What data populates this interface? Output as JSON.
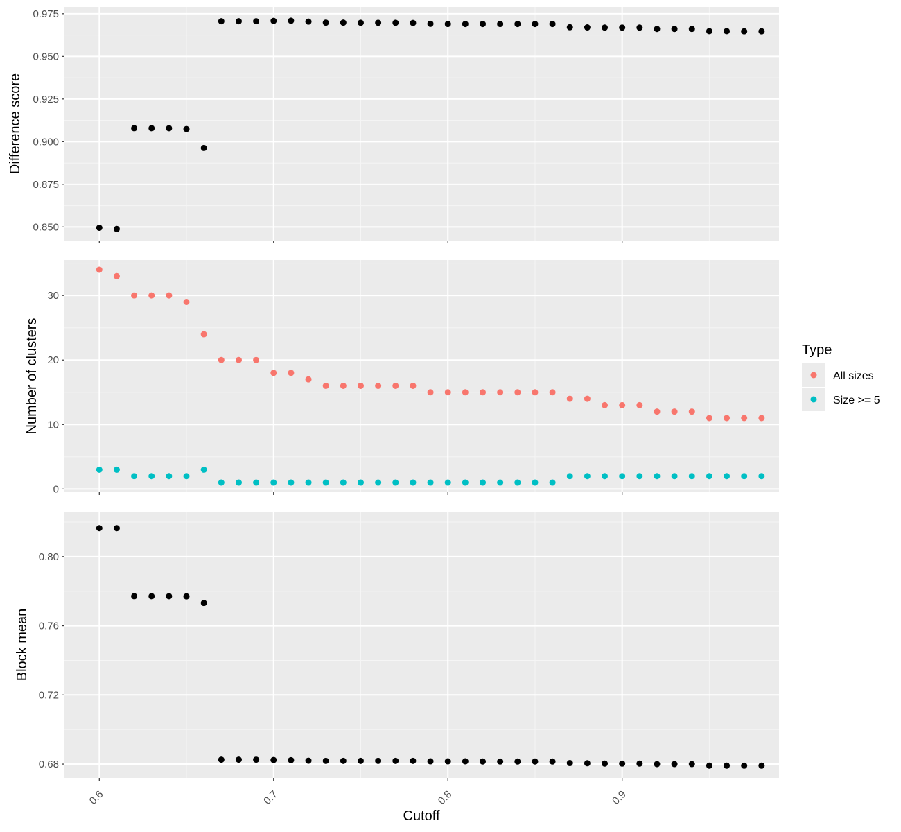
{
  "chart_data": {
    "type": "scatter",
    "xlabel": "Cutoff",
    "x_ticks": [
      "0.6",
      "0.7",
      "0.8",
      "0.9"
    ],
    "x_tick_values": [
      0.6,
      0.7,
      0.8,
      0.9
    ],
    "xlim": [
      0.58,
      0.99
    ],
    "x": [
      0.6,
      0.61,
      0.62,
      0.63,
      0.64,
      0.65,
      0.66,
      0.67,
      0.68,
      0.69,
      0.7,
      0.71,
      0.72,
      0.73,
      0.74,
      0.75,
      0.76,
      0.77,
      0.78,
      0.79,
      0.8,
      0.81,
      0.82,
      0.83,
      0.84,
      0.85,
      0.86,
      0.87,
      0.88,
      0.89,
      0.9,
      0.91,
      0.92,
      0.93,
      0.94,
      0.95,
      0.96,
      0.97,
      0.98
    ],
    "grid": true,
    "panels": [
      {
        "ylabel": "Difference score",
        "ylim": [
          0.842,
          0.979
        ],
        "y_ticks": [
          "0.850",
          "0.875",
          "0.900",
          "0.925",
          "0.950",
          "0.975"
        ],
        "y_tick_values": [
          0.85,
          0.875,
          0.9,
          0.925,
          0.95,
          0.975
        ],
        "series": [
          {
            "color": "#000000",
            "values": [
              0.8495,
              0.8488,
              0.9079,
              0.9079,
              0.9079,
              0.9074,
              0.8963,
              0.9706,
              0.9706,
              0.9706,
              0.9708,
              0.9709,
              0.9704,
              0.9698,
              0.9698,
              0.9697,
              0.9697,
              0.9697,
              0.9696,
              0.9691,
              0.969,
              0.969,
              0.969,
              0.969,
              0.969,
              0.969,
              0.969,
              0.9671,
              0.967,
              0.9669,
              0.9669,
              0.9669,
              0.9661,
              0.9661,
              0.9661,
              0.9648,
              0.9648,
              0.9647,
              0.9647
            ]
          }
        ]
      },
      {
        "ylabel": "Number of clusters",
        "ylim": [
          -0.5,
          35.5
        ],
        "y_ticks": [
          "0",
          "10",
          "20",
          "30"
        ],
        "y_tick_values": [
          0,
          10,
          20,
          30
        ],
        "series": [
          {
            "name": "All sizes",
            "color": "#F8766D",
            "values": [
              34,
              33,
              30,
              30,
              30,
              29,
              24,
              20,
              20,
              20,
              18,
              18,
              17,
              16,
              16,
              16,
              16,
              16,
              16,
              15,
              15,
              15,
              15,
              15,
              15,
              15,
              15,
              14,
              14,
              13,
              13,
              13,
              12,
              12,
              12,
              11,
              11,
              11,
              11
            ]
          },
          {
            "name": "Size >= 5",
            "color": "#00BFC4",
            "values": [
              3,
              3,
              2,
              2,
              2,
              2,
              3,
              1,
              1,
              1,
              1,
              1,
              1,
              1,
              1,
              1,
              1,
              1,
              1,
              1,
              1,
              1,
              1,
              1,
              1,
              1,
              1,
              2,
              2,
              2,
              2,
              2,
              2,
              2,
              2,
              2,
              2,
              2,
              2
            ]
          }
        ]
      },
      {
        "ylabel": "Block mean",
        "ylim": [
          0.672,
          0.826
        ],
        "y_ticks": [
          "0.68",
          "0.72",
          "0.76",
          "0.80"
        ],
        "y_tick_values": [
          0.68,
          0.72,
          0.76,
          0.8
        ],
        "series": [
          {
            "color": "#000000",
            "values": [
              0.8165,
              0.8165,
              0.7771,
              0.7771,
              0.7771,
              0.777,
              0.7732,
              0.6826,
              0.6826,
              0.6826,
              0.6824,
              0.6823,
              0.682,
              0.6819,
              0.6819,
              0.6819,
              0.6819,
              0.6819,
              0.6819,
              0.6816,
              0.6816,
              0.6816,
              0.6815,
              0.6815,
              0.6815,
              0.6815,
              0.6815,
              0.6806,
              0.6805,
              0.6803,
              0.6803,
              0.6803,
              0.68,
              0.68,
              0.68,
              0.6791,
              0.6791,
              0.6791,
              0.6791
            ]
          }
        ]
      }
    ],
    "legend": {
      "title": "Type",
      "position": "right",
      "entries": [
        {
          "label": "All sizes",
          "color": "#F8766D"
        },
        {
          "label": "Size >= 5",
          "color": "#00BFC4"
        }
      ]
    }
  }
}
